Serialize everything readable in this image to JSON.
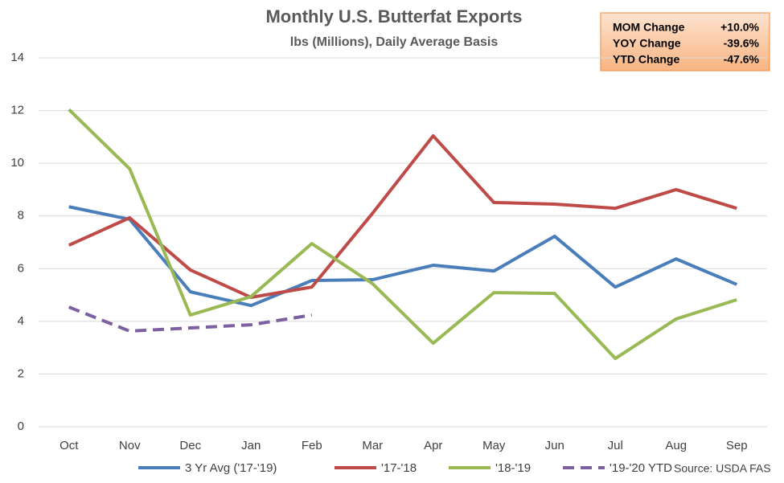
{
  "chart_data": {
    "type": "line",
    "title": "Monthly U.S. Butterfat Exports",
    "subtitle": "lbs (Millions), Daily Average Basis",
    "source": "Source: USDA FAS",
    "stats_box": [
      [
        "MOM Change",
        "+10.0%"
      ],
      [
        "YOY Change",
        "-39.6%"
      ],
      [
        "YTD Change",
        "-47.6%"
      ]
    ],
    "categories": [
      "Oct",
      "Nov",
      "Dec",
      "Jan",
      "Feb",
      "Mar",
      "Apr",
      "May",
      "Jun",
      "Jul",
      "Aug",
      "Sep"
    ],
    "series": [
      {
        "name": "3 Yr Avg ('17-'19)",
        "color": "#4a7ebb",
        "values": [
          8.35,
          7.87,
          5.12,
          4.6,
          5.55,
          5.58,
          6.13,
          5.91,
          7.23,
          5.3,
          6.37,
          5.4
        ]
      },
      {
        "name": "'17-'18",
        "color": "#be4b48",
        "values": [
          6.89,
          7.93,
          5.95,
          4.91,
          5.3,
          8.1,
          11.04,
          8.51,
          8.45,
          8.29,
          9.0,
          8.29
        ]
      },
      {
        "name": "'18-'19",
        "color": "#98b954",
        "values": [
          12.04,
          9.79,
          4.24,
          4.94,
          6.95,
          5.43,
          3.17,
          5.09,
          5.06,
          2.59,
          4.09,
          4.82
        ]
      },
      {
        "name": "'19-'20 YTD",
        "color": "#7d60a0",
        "dashed": true,
        "values": [
          4.54,
          3.63,
          3.75,
          3.87,
          4.24,
          null,
          null,
          null,
          null,
          null,
          null,
          null
        ]
      }
    ],
    "ylim": [
      0,
      14
    ],
    "yticks": [
      0,
      2,
      4,
      6,
      8,
      10,
      12,
      14
    ],
    "grid": true,
    "legend": "bottom"
  }
}
